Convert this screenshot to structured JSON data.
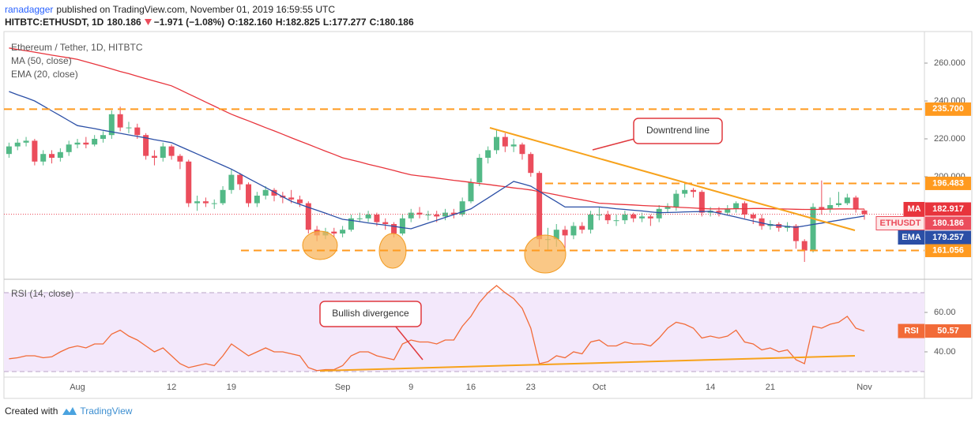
{
  "header": {
    "author": "ranadagger",
    "published": "published on TradingView.com, November 01, 2019 16:59:55 UTC",
    "symbol": "HITBTC:ETHUSDT, 1D",
    "last": "180.186",
    "change": "−1.971 (−1.08%)",
    "open": "O:182.160",
    "high": "H:182.825",
    "low": "L:177.277",
    "close": "C:180.186"
  },
  "chart_data": [
    {
      "type": "candlestick",
      "title": "Ethereum / Tether, 1D, HITBTC",
      "badge": "ETHUSDT",
      "last_label": "180.186",
      "categories": [
        null,
        null,
        null,
        null,
        null,
        null,
        null,
        null,
        "Aug",
        null,
        null,
        null,
        null,
        null,
        null,
        null,
        null,
        null,
        null,
        "12",
        null,
        null,
        null,
        null,
        null,
        null,
        "19",
        null,
        null,
        null,
        null,
        null,
        null,
        null,
        null,
        null,
        null,
        null,
        null,
        "Sep",
        null,
        null,
        null,
        null,
        null,
        null,
        null,
        "9",
        null,
        null,
        null,
        null,
        null,
        null,
        "16",
        null,
        null,
        null,
        null,
        null,
        null,
        "23",
        null,
        null,
        null,
        null,
        null,
        null,
        null,
        "Oct",
        null,
        null,
        null,
        null,
        null,
        null,
        null,
        null,
        null,
        null,
        null,
        null,
        "14",
        null,
        null,
        null,
        null,
        null,
        null,
        "21",
        null,
        null,
        null,
        null,
        null,
        null,
        null,
        null,
        null,
        null,
        "Nov"
      ],
      "open": [
        212,
        216,
        218,
        219,
        208,
        212,
        210,
        213,
        217,
        218,
        217,
        220,
        222,
        233,
        226,
        226,
        222,
        211,
        210,
        216,
        211,
        208,
        186,
        187,
        186,
        186,
        193,
        201,
        196,
        186,
        190,
        193,
        190,
        189,
        188,
        186,
        172,
        169,
        171,
        170,
        172,
        178,
        178,
        180,
        176,
        175,
        170,
        178,
        181,
        180,
        180,
        179,
        181,
        180,
        187,
        197,
        210,
        214,
        221,
        216,
        217,
        212,
        202,
        167,
        167,
        172,
        169,
        174,
        172,
        180,
        180,
        177,
        177,
        180,
        178,
        179,
        178,
        183,
        184,
        191,
        193,
        192,
        181,
        182,
        181,
        183,
        186,
        180,
        178,
        174,
        175,
        173,
        174,
        166,
        161,
        184,
        183,
        185,
        186,
        189,
        182.16
      ],
      "high": [
        218,
        220,
        221,
        220,
        214,
        214,
        215,
        219,
        220,
        221,
        222,
        224,
        235,
        237,
        229,
        228,
        223,
        214,
        218,
        217,
        212,
        209,
        190,
        189,
        188,
        195,
        204,
        202,
        197,
        192,
        195,
        194,
        192,
        193,
        190,
        187,
        174,
        173,
        173,
        174,
        180,
        181,
        182,
        181,
        178,
        176,
        180,
        183,
        184,
        182,
        182,
        183,
        183,
        189,
        199,
        212,
        216,
        225,
        223,
        220,
        218,
        213,
        203,
        173,
        175,
        174,
        176,
        176,
        182,
        184,
        182,
        180,
        182,
        181,
        181,
        180,
        185,
        186,
        193,
        196,
        194,
        193,
        184,
        184,
        185,
        187,
        187,
        181,
        180,
        177,
        176,
        176,
        175,
        167,
        186,
        198,
        189,
        192,
        191,
        190,
        182.825
      ],
      "low": [
        210,
        214,
        216,
        206,
        206,
        207,
        208,
        211,
        215,
        215,
        216,
        218,
        220,
        224,
        223,
        220,
        209,
        206,
        208,
        209,
        204,
        184,
        182,
        184,
        183,
        185,
        191,
        193,
        184,
        184,
        188,
        187,
        186,
        186,
        184,
        170,
        166,
        167,
        168,
        168,
        171,
        176,
        176,
        174,
        172,
        168,
        169,
        176,
        178,
        177,
        176,
        177,
        178,
        179,
        186,
        195,
        207,
        212,
        213,
        213,
        209,
        200,
        163,
        161,
        163,
        162,
        167,
        170,
        170,
        177,
        175,
        174,
        175,
        176,
        176,
        174,
        176,
        181,
        182,
        189,
        189,
        179,
        179,
        179,
        180,
        181,
        178,
        175,
        172,
        172,
        171,
        171,
        162,
        155,
        160,
        180,
        181,
        184,
        185,
        181,
        177.277
      ],
      "close": [
        216,
        218,
        219,
        208,
        212,
        210,
        213,
        217,
        218,
        217,
        220,
        222,
        233,
        226,
        226,
        222,
        211,
        210,
        216,
        211,
        208,
        186,
        187,
        186,
        186,
        193,
        201,
        196,
        186,
        190,
        193,
        190,
        189,
        188,
        186,
        172,
        169,
        171,
        170,
        172,
        178,
        178,
        180,
        176,
        175,
        170,
        178,
        181,
        180,
        180,
        179,
        181,
        180,
        187,
        197,
        210,
        214,
        221,
        216,
        217,
        212,
        202,
        167,
        167,
        172,
        169,
        174,
        172,
        180,
        180,
        177,
        177,
        180,
        178,
        179,
        178,
        183,
        184,
        191,
        193,
        192,
        181,
        182,
        181,
        183,
        186,
        180,
        178,
        174,
        175,
        173,
        174,
        166,
        161,
        184,
        183,
        185,
        186,
        189,
        183,
        180.186
      ],
      "up_color": "#53b987",
      "down_color": "#eb4d5c",
      "series": [
        {
          "name": "MA (50, close)",
          "badge": "MA",
          "last_label": "182.917",
          "color": "#e8343c",
          "values": [
            268,
            267.2,
            266.5,
            265.8,
            265,
            264.2,
            263.5,
            262.8,
            262,
            260.7,
            259.5,
            258.2,
            256.9,
            255.6,
            254.4,
            253.1,
            251.8,
            250.5,
            249.3,
            248,
            245.9,
            243.7,
            241.6,
            239.4,
            237.3,
            235.1,
            233,
            231.2,
            229.5,
            227.7,
            225.9,
            224.2,
            222.4,
            220.6,
            218.8,
            217.1,
            215.3,
            213.5,
            211.8,
            210,
            208.9,
            207.8,
            206.6,
            205.5,
            204.4,
            203.3,
            202.1,
            201,
            200.4,
            199.9,
            199.3,
            198.7,
            198.1,
            197.6,
            197,
            196.4,
            195.9,
            195.3,
            194.7,
            194.1,
            193.6,
            193,
            192.1,
            191.3,
            190.4,
            189.5,
            188.6,
            187.8,
            186.9,
            186,
            185.8,
            185.5,
            185.3,
            185.1,
            184.8,
            184.6,
            184.4,
            184.2,
            183.9,
            183.7,
            183.5,
            183.2,
            183,
            183,
            183,
            183.1,
            183.1,
            183.2,
            183.2,
            183.1,
            183,
            182.9,
            182.8,
            182.7,
            182.7,
            182.8,
            182.9,
            183,
            183,
            182.9,
            182.917
          ]
        },
        {
          "name": "EMA (20, close)",
          "badge": "EMA",
          "last_label": "179.257",
          "color": "#2b4fa6",
          "values": [
            245,
            243.3,
            241.7,
            240,
            237.4,
            234.8,
            232.2,
            229.6,
            227,
            226.2,
            225.4,
            224.5,
            223.7,
            222.9,
            222.1,
            221.3,
            220.5,
            219.6,
            218.8,
            218,
            216,
            214,
            212,
            210,
            208,
            206,
            204,
            201.6,
            199.1,
            196.7,
            194.3,
            191.9,
            189.4,
            187,
            185.4,
            183.8,
            182.3,
            180.7,
            179.1,
            177.5,
            176.9,
            176.3,
            175.6,
            175,
            174.4,
            173.8,
            173.1,
            172.5,
            174,
            175.5,
            177,
            178.5,
            180,
            181.5,
            183,
            185.9,
            188.8,
            191.7,
            194.6,
            197.5,
            196.3,
            195,
            192.3,
            189.5,
            186.8,
            184,
            184,
            184,
            184,
            184,
            183.6,
            183.1,
            182.7,
            182.3,
            181.9,
            181.4,
            181,
            181.1,
            181.2,
            181.4,
            181.5,
            181.6,
            181.7,
            180.7,
            179.7,
            178.7,
            177.6,
            176.6,
            175.6,
            174.6,
            174.2,
            173.7,
            173.3,
            174,
            174.8,
            175.5,
            176.3,
            177,
            177.8,
            178.5,
            179.257
          ]
        }
      ],
      "levels": [
        {
          "value": 235.7,
          "label": "235.700"
        },
        {
          "value": 196.483,
          "label": "196.483"
        },
        {
          "value": 161.056,
          "label": "161.056"
        }
      ],
      "level_color": "#ff9a1f",
      "annotations": [
        "Downtrend line"
      ],
      "ylim": [
        146.667,
        277.5
      ],
      "yticks": [
        {
          "value": 260,
          "label": "260.000"
        },
        {
          "value": 240,
          "label": "240.000"
        },
        {
          "value": 220,
          "label": "220.000"
        },
        {
          "value": 200,
          "label": "200.000"
        }
      ]
    },
    {
      "type": "line",
      "title": "RSI (14, close)",
      "series": [
        {
          "badge": "RSI",
          "last_label": "50.57",
          "color": "#f26b38",
          "values": [
            36.5,
            37,
            38,
            38,
            37,
            37.5,
            40,
            42,
            43,
            42,
            44,
            44,
            49,
            51,
            48,
            46,
            43,
            40,
            42,
            38,
            34,
            32,
            33,
            34,
            33,
            38,
            44,
            41,
            38,
            40,
            42,
            40,
            40,
            39,
            38,
            32,
            30.5,
            31,
            31,
            33,
            38,
            40,
            40,
            38,
            37,
            36,
            44,
            46,
            45,
            45,
            44,
            46,
            46,
            53,
            58,
            65,
            70,
            73.6,
            70,
            67,
            62,
            52,
            34,
            35,
            38,
            37,
            40,
            39,
            45,
            46,
            43,
            43,
            45,
            44,
            44,
            43,
            47,
            52,
            55,
            54,
            52,
            47,
            48,
            47,
            48,
            51,
            45,
            44,
            41,
            42,
            40,
            41,
            36,
            34,
            53,
            52,
            54,
            55,
            58,
            52,
            50.57
          ]
        }
      ],
      "bands": [
        30,
        70
      ],
      "band_color": "#f3e8fb",
      "annotations": [
        "Bullish divergence"
      ],
      "ylim": [
        27.2,
        76
      ],
      "yticks": [
        {
          "value": 60,
          "label": "60.00"
        },
        {
          "value": 40,
          "label": "40.00"
        }
      ]
    }
  ],
  "footer": {
    "created": "Created with",
    "brand": "TradingView"
  }
}
